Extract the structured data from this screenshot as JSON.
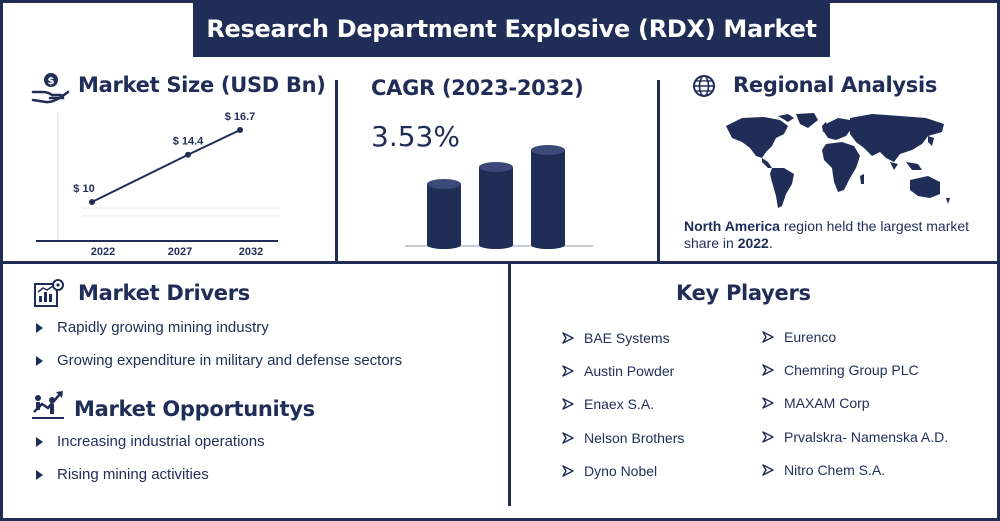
{
  "title": "Research Department Explosive (RDX) Market",
  "colors": {
    "navy": "#1f2d57",
    "background": "#ffffff"
  },
  "market_size": {
    "heading": "Market Size (USD Bn)",
    "icon": "money-hand-icon",
    "chart_data": {
      "type": "line",
      "categories": [
        "2022",
        "2027",
        "2032"
      ],
      "values": [
        10,
        14.4,
        16.7
      ],
      "data_labels": [
        "$ 10",
        "$ 14.4",
        "$ 16.7"
      ],
      "title": "",
      "xlabel": "",
      "ylabel": "",
      "ylim": [
        0,
        20
      ],
      "grid": false
    }
  },
  "cagr": {
    "heading": "CAGR (2023-2032)",
    "value": "3.53%",
    "icon": "cylinder-bars-icon"
  },
  "regional": {
    "heading": "Regional Analysis",
    "icon": "globe-icon",
    "text_bold_region": "North America",
    "text_middle": " region held the largest market share in ",
    "text_bold_year": "2022",
    "text_end": "."
  },
  "drivers": {
    "heading": "Market Drivers",
    "icon": "chart-gear-icon",
    "items": [
      "Rapidly growing mining industry",
      "Growing expenditure in military and defense sectors"
    ]
  },
  "opportunities": {
    "heading": "Market Opportunitys",
    "icon": "growth-people-icon",
    "items": [
      "Increasing industrial operations",
      "Rising mining activities"
    ]
  },
  "key_players": {
    "heading": "Key Players",
    "col1": [
      "BAE Systems",
      "Austin Powder",
      "Enaex S.A.",
      "Nelson Brothers",
      "Dyno Nobel"
    ],
    "col2": [
      "Eurenco",
      "Chemring Group PLC",
      "MAXAM Corp",
      "Prvalskra- Namenska A.D.",
      "Nitro Chem S.A."
    ]
  }
}
